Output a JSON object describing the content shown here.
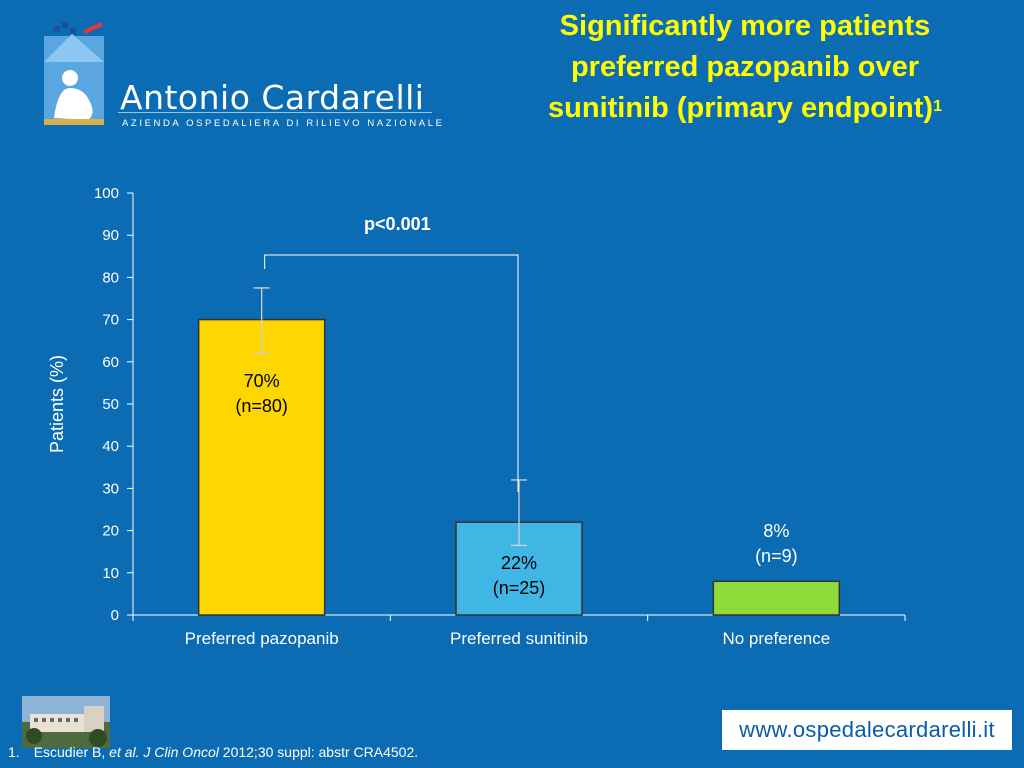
{
  "logo": {
    "name": "Antonio Cardarelli",
    "subtitle": "AZIENDA OSPEDALIERA DI RILIEVO NAZIONALE"
  },
  "title": {
    "line1": "Significantly more patients",
    "line2": "preferred pazopanib  over",
    "line3": "sunitinib (primary endpoint)",
    "superscript": "1"
  },
  "chart_data": {
    "type": "bar",
    "categories": [
      "Preferred pazopanib",
      "Preferred sunitinib",
      "No preference"
    ],
    "values": [
      70,
      22,
      8
    ],
    "bar_labels": [
      [
        "70%",
        "(n=80)"
      ],
      [
        "22%",
        "(n=25)"
      ],
      [
        "8%",
        "(n=9)"
      ]
    ],
    "error_bars": [
      {
        "low": 62,
        "high": 77.5
      },
      {
        "low": 16.5,
        "high": 32
      },
      null
    ],
    "colors": [
      "#ffd700",
      "#40b6e4",
      "#8edb3c"
    ],
    "ylabel": "Patients (%)",
    "xlabel": "",
    "ylim": [
      0,
      100
    ],
    "yticks": [
      0,
      10,
      20,
      30,
      40,
      50,
      60,
      70,
      80,
      90,
      100
    ],
    "annotation": "p<0.001",
    "grid": false
  },
  "footer": {
    "website": "www.ospedalecardarelli.it",
    "footnote_number": "1.",
    "footnote_author": "Escudier B, ",
    "footnote_italic": "et al. J Clin Oncol",
    "footnote_rest": " 2012;30 suppl: abstr CRA4502."
  }
}
